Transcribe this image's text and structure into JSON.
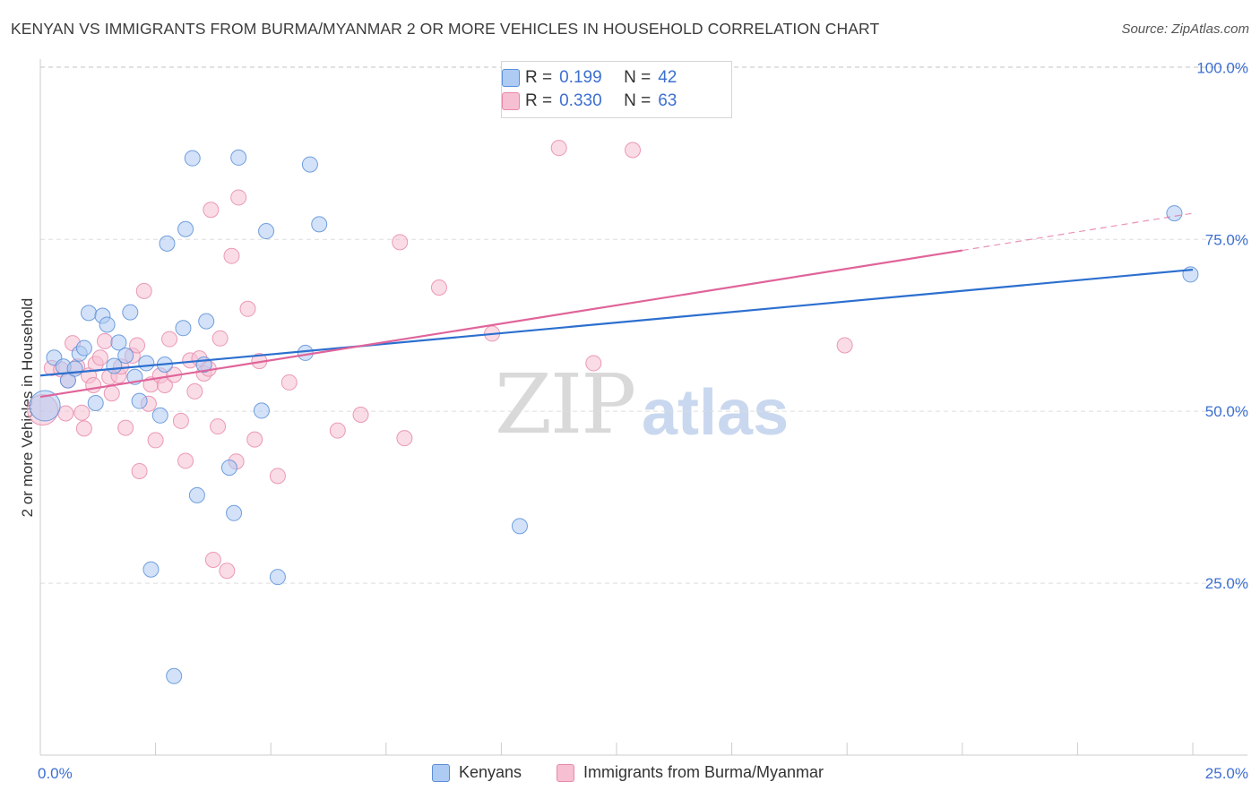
{
  "title": "KENYAN VS IMMIGRANTS FROM BURMA/MYANMAR 2 OR MORE VEHICLES IN HOUSEHOLD CORRELATION CHART",
  "source": "Source: ZipAtlas.com",
  "watermark": {
    "zip": "ZIP",
    "atlas": "atlas"
  },
  "legend_top": [
    {
      "r_label": "R =",
      "r_value": "0.199",
      "n_label": "N =",
      "n_value": "42"
    },
    {
      "r_label": "R =",
      "r_value": "0.330",
      "n_label": "N =",
      "n_value": "63"
    }
  ],
  "legend_bottom": [
    "Kenyans",
    "Immigrants from Burma/Myanmar"
  ],
  "colors": {
    "kenyans_fill": "#aecbf3",
    "kenyans_stroke": "#5b8fd8",
    "kenyans_line": "#2c6fcf",
    "burma_fill": "#f6bfd2",
    "burma_stroke": "#e889ab",
    "burma_line": "#e0649a",
    "tick_label": "#3d6fd0",
    "grid": "#dddddd"
  },
  "chart_data": {
    "type": "scatter",
    "title": "KENYAN VS IMMIGRANTS FROM BURMA/MYANMAR 2 OR MORE VEHICLES IN HOUSEHOLD CORRELATION CHART",
    "xlabel": "",
    "ylabel": "2 or more Vehicles in Household",
    "xlim": [
      0,
      25
    ],
    "ylim": [
      0,
      102
    ],
    "x_tick_labels": [
      "0.0%",
      "25.0%"
    ],
    "y_ticks": [
      25,
      50,
      75,
      100
    ],
    "y_tick_labels": [
      "25.0%",
      "50.0%",
      "75.0%",
      "100.0%"
    ],
    "grid": true,
    "legend_placement": "top-center",
    "series": [
      {
        "name": "Kenyans",
        "r": 0.199,
        "n": 42,
        "trend": {
          "x": [
            0,
            25
          ],
          "y": [
            55.2,
            70.6
          ]
        },
        "points": [
          {
            "x": 0.1,
            "y": 50.8,
            "big": true
          },
          {
            "x": 0.3,
            "y": 57.8
          },
          {
            "x": 0.5,
            "y": 56.5
          },
          {
            "x": 0.6,
            "y": 54.5
          },
          {
            "x": 0.75,
            "y": 56.2
          },
          {
            "x": 0.85,
            "y": 58.4
          },
          {
            "x": 0.95,
            "y": 59.2
          },
          {
            "x": 1.05,
            "y": 64.3
          },
          {
            "x": 1.2,
            "y": 51.2
          },
          {
            "x": 1.35,
            "y": 63.9
          },
          {
            "x": 1.45,
            "y": 62.6
          },
          {
            "x": 1.6,
            "y": 56.6
          },
          {
            "x": 1.7,
            "y": 60.0
          },
          {
            "x": 1.85,
            "y": 58.1
          },
          {
            "x": 1.95,
            "y": 64.4
          },
          {
            "x": 2.05,
            "y": 55.0
          },
          {
            "x": 2.15,
            "y": 51.5
          },
          {
            "x": 2.3,
            "y": 57.0
          },
          {
            "x": 2.4,
            "y": 27.0
          },
          {
            "x": 2.6,
            "y": 49.4
          },
          {
            "x": 2.7,
            "y": 56.8
          },
          {
            "x": 2.75,
            "y": 74.4
          },
          {
            "x": 2.9,
            "y": 11.5
          },
          {
            "x": 3.1,
            "y": 62.1
          },
          {
            "x": 3.15,
            "y": 76.5
          },
          {
            "x": 3.3,
            "y": 86.8
          },
          {
            "x": 3.4,
            "y": 37.8
          },
          {
            "x": 3.6,
            "y": 63.1
          },
          {
            "x": 3.55,
            "y": 56.8
          },
          {
            "x": 4.1,
            "y": 41.8
          },
          {
            "x": 4.2,
            "y": 35.2
          },
          {
            "x": 4.3,
            "y": 86.9
          },
          {
            "x": 4.8,
            "y": 50.1
          },
          {
            "x": 4.9,
            "y": 76.2
          },
          {
            "x": 5.15,
            "y": 25.9
          },
          {
            "x": 5.75,
            "y": 58.5
          },
          {
            "x": 5.85,
            "y": 85.9
          },
          {
            "x": 6.05,
            "y": 77.2
          },
          {
            "x": 10.4,
            "y": 33.3
          },
          {
            "x": 24.6,
            "y": 78.8
          },
          {
            "x": 24.95,
            "y": 69.9
          }
        ]
      },
      {
        "name": "Immigrants from Burma/Myanmar",
        "r": 0.33,
        "n": 63,
        "trend": {
          "x": [
            0,
            20.0
          ],
          "y": [
            52.1,
            73.4
          ]
        },
        "trend_dashed": {
          "x": [
            20.0,
            25
          ],
          "y": [
            73.4,
            78.8
          ]
        },
        "points": [
          {
            "x": 0.05,
            "y": 50.2,
            "big": true
          },
          {
            "x": 0.25,
            "y": 56.3
          },
          {
            "x": 0.45,
            "y": 56.1
          },
          {
            "x": 0.55,
            "y": 49.7
          },
          {
            "x": 0.6,
            "y": 54.5
          },
          {
            "x": 0.7,
            "y": 59.9
          },
          {
            "x": 0.8,
            "y": 56.5
          },
          {
            "x": 0.9,
            "y": 49.8
          },
          {
            "x": 0.95,
            "y": 47.5
          },
          {
            "x": 1.05,
            "y": 55.2
          },
          {
            "x": 1.15,
            "y": 53.8
          },
          {
            "x": 1.2,
            "y": 56.9
          },
          {
            "x": 1.3,
            "y": 57.8
          },
          {
            "x": 1.4,
            "y": 60.2
          },
          {
            "x": 1.5,
            "y": 55.0
          },
          {
            "x": 1.55,
            "y": 52.6
          },
          {
            "x": 1.7,
            "y": 55.2
          },
          {
            "x": 1.75,
            "y": 56.5
          },
          {
            "x": 1.85,
            "y": 47.6
          },
          {
            "x": 2.0,
            "y": 58.1
          },
          {
            "x": 2.1,
            "y": 59.6
          },
          {
            "x": 2.15,
            "y": 41.3
          },
          {
            "x": 2.25,
            "y": 67.5
          },
          {
            "x": 2.35,
            "y": 51.1
          },
          {
            "x": 2.4,
            "y": 53.9
          },
          {
            "x": 2.5,
            "y": 45.8
          },
          {
            "x": 2.6,
            "y": 55.2
          },
          {
            "x": 2.7,
            "y": 53.8
          },
          {
            "x": 2.8,
            "y": 60.5
          },
          {
            "x": 2.9,
            "y": 55.3
          },
          {
            "x": 3.05,
            "y": 48.6
          },
          {
            "x": 3.15,
            "y": 42.8
          },
          {
            "x": 3.25,
            "y": 57.4
          },
          {
            "x": 3.35,
            "y": 52.9
          },
          {
            "x": 3.45,
            "y": 57.7
          },
          {
            "x": 3.55,
            "y": 55.5
          },
          {
            "x": 3.65,
            "y": 56.2
          },
          {
            "x": 3.7,
            "y": 79.3
          },
          {
            "x": 3.75,
            "y": 28.4
          },
          {
            "x": 3.85,
            "y": 47.8
          },
          {
            "x": 3.9,
            "y": 60.6
          },
          {
            "x": 4.05,
            "y": 26.8
          },
          {
            "x": 4.15,
            "y": 72.6
          },
          {
            "x": 4.25,
            "y": 42.7
          },
          {
            "x": 4.3,
            "y": 81.1
          },
          {
            "x": 4.5,
            "y": 64.9
          },
          {
            "x": 4.65,
            "y": 45.9
          },
          {
            "x": 4.75,
            "y": 57.3
          },
          {
            "x": 5.15,
            "y": 40.6
          },
          {
            "x": 5.4,
            "y": 54.2
          },
          {
            "x": 6.45,
            "y": 47.2
          },
          {
            "x": 6.95,
            "y": 49.5
          },
          {
            "x": 7.8,
            "y": 74.6
          },
          {
            "x": 7.9,
            "y": 46.1
          },
          {
            "x": 8.65,
            "y": 68.0
          },
          {
            "x": 9.8,
            "y": 61.3
          },
          {
            "x": 11.25,
            "y": 88.3
          },
          {
            "x": 12.0,
            "y": 57.0
          },
          {
            "x": 12.85,
            "y": 88.0
          },
          {
            "x": 17.45,
            "y": 59.6
          }
        ]
      }
    ]
  }
}
